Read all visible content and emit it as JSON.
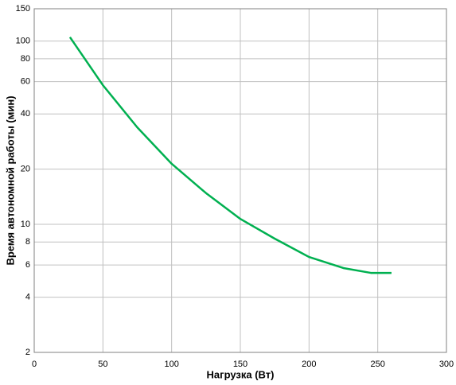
{
  "chart_data": {
    "type": "line",
    "x_label": "Нагрузка (Вт)",
    "y_label": "Время автономной работы (мин)",
    "x": [
      26,
      50,
      75,
      100,
      125,
      150,
      175,
      200,
      225,
      245,
      260
    ],
    "series": [
      {
        "color": "#00b050",
        "values": [
          105,
          57.4,
          33.8,
          21.4,
          14.8,
          10.7,
          8.35,
          6.63,
          5.77,
          5.43,
          5.43
        ]
      }
    ],
    "xlim": [
      0,
      300
    ],
    "xticks": [
      0,
      50,
      100,
      150,
      200,
      250,
      300
    ],
    "ylim": [
      2,
      150
    ],
    "yticks": [
      2,
      4,
      6,
      8,
      10,
      20,
      40,
      60,
      80,
      100,
      150
    ],
    "y_scale": "log",
    "grid": true
  }
}
